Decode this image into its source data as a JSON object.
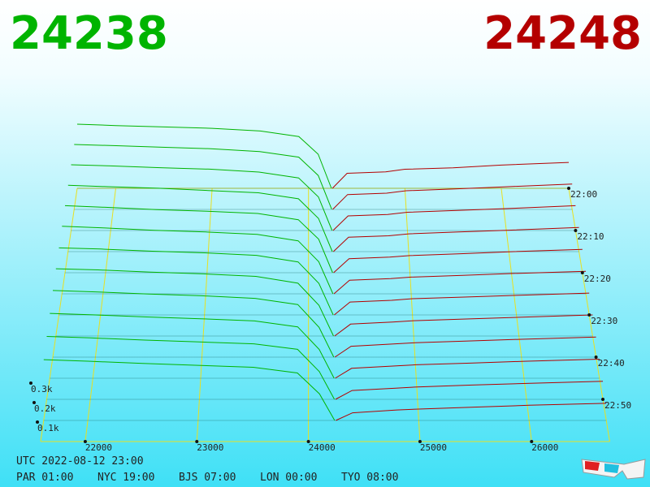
{
  "chart_data": {
    "type": "depth3d",
    "bid": 24238,
    "ask": 24248,
    "bid_color": "#00b400",
    "ask_color": "#b40000",
    "grid_color": "#e8e020",
    "xlim": [
      21600,
      26700
    ],
    "xticks": [
      22000,
      23000,
      24000,
      25000,
      26000
    ],
    "zticks": [
      {
        "value": 100,
        "label": "0.1k"
      },
      {
        "value": 200,
        "label": "0.2k"
      },
      {
        "value": 300,
        "label": "0.3k"
      }
    ],
    "time_ticks": [
      "22:00",
      "22:10",
      "22:20",
      "22:30",
      "22:40",
      "22:50"
    ],
    "utc": "UTC 2022-08-12 23:00",
    "zones": [
      "PAR 01:00",
      "NYC 19:00",
      "BJS 07:00",
      "LON 00:00",
      "TYO 08:00"
    ],
    "bid_prices": [
      21600,
      22000,
      22500,
      23000,
      23500,
      23900,
      24100,
      24238
    ],
    "bid_depths": [
      [
        470,
        460,
        450,
        440,
        420,
        380,
        250,
        0
      ],
      [
        460,
        452,
        440,
        430,
        410,
        370,
        240,
        0
      ],
      [
        450,
        442,
        430,
        420,
        400,
        360,
        230,
        0
      ],
      [
        440,
        430,
        420,
        405,
        390,
        350,
        220,
        0
      ],
      [
        430,
        420,
        405,
        395,
        380,
        340,
        215,
        0
      ],
      [
        420,
        410,
        395,
        385,
        370,
        330,
        200,
        0
      ],
      [
        405,
        398,
        385,
        375,
        360,
        320,
        190,
        0
      ],
      [
        395,
        388,
        375,
        365,
        350,
        310,
        180,
        0
      ],
      [
        380,
        372,
        360,
        350,
        335,
        300,
        170,
        0
      ],
      [
        360,
        352,
        340,
        330,
        318,
        285,
        160,
        0
      ],
      [
        340,
        332,
        320,
        310,
        300,
        270,
        150,
        0
      ],
      [
        320,
        312,
        300,
        290,
        280,
        250,
        140,
        0
      ]
    ],
    "ask_prices": [
      24248,
      24400,
      24800,
      25000,
      25500,
      26000,
      26700
    ],
    "ask_depths": [
      [
        0,
        110,
        120,
        140,
        150,
        170,
        190
      ],
      [
        0,
        105,
        115,
        132,
        145,
        160,
        180
      ],
      [
        0,
        100,
        110,
        125,
        138,
        150,
        170
      ],
      [
        0,
        95,
        105,
        118,
        130,
        142,
        160
      ],
      [
        0,
        90,
        100,
        110,
        122,
        135,
        150
      ],
      [
        0,
        85,
        95,
        104,
        115,
        127,
        140
      ],
      [
        0,
        78,
        88,
        98,
        108,
        118,
        132
      ],
      [
        0,
        70,
        82,
        90,
        100,
        110,
        124
      ],
      [
        0,
        62,
        75,
        82,
        92,
        102,
        115
      ],
      [
        0,
        55,
        68,
        75,
        84,
        94,
        106
      ],
      [
        0,
        48,
        60,
        67,
        77,
        86,
        98
      ],
      [
        0,
        40,
        55,
        60,
        70,
        80,
        90
      ]
    ]
  }
}
